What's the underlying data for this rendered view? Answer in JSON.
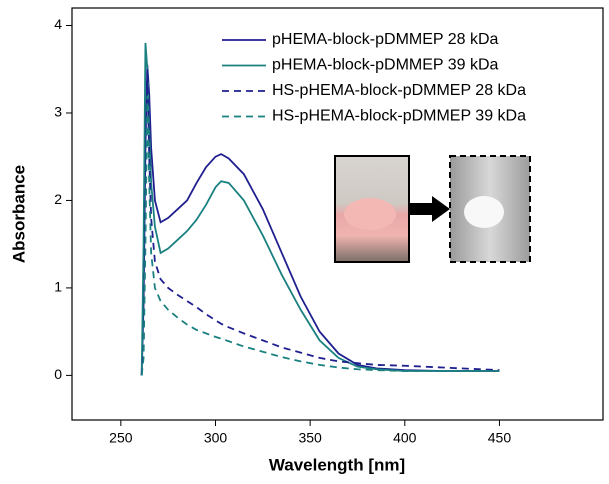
{
  "chart_data": {
    "type": "line",
    "x_label": "Wavelength [nm]",
    "y_label": "Absorbance",
    "x": [
      261,
      262,
      263,
      264,
      265,
      266,
      268,
      271,
      275,
      280,
      285,
      290,
      295,
      300,
      303,
      307,
      315,
      325,
      335,
      345,
      355,
      365,
      375,
      385,
      400,
      420,
      450
    ],
    "series": [
      {
        "name": "pHEMA-block-pDMMEP 28 kDa",
        "color": "#1f1f8f",
        "style": "solid",
        "values": [
          0,
          0.8,
          2.6,
          3.55,
          3.2,
          2.6,
          2.0,
          1.75,
          1.8,
          1.9,
          2.0,
          2.2,
          2.38,
          2.5,
          2.53,
          2.48,
          2.3,
          1.9,
          1.4,
          0.9,
          0.5,
          0.25,
          0.12,
          0.08,
          0.06,
          0.05,
          0.05
        ]
      },
      {
        "name": "pHEMA-block-pDMMEP 39 kDa",
        "color": "#1a8080",
        "style": "solid",
        "values": [
          0,
          1.5,
          3.8,
          3.5,
          2.8,
          2.2,
          1.7,
          1.4,
          1.45,
          1.55,
          1.65,
          1.78,
          1.95,
          2.15,
          2.22,
          2.2,
          2.0,
          1.6,
          1.15,
          0.75,
          0.4,
          0.2,
          0.1,
          0.07,
          0.05,
          0.05,
          0.05
        ]
      },
      {
        "name": "HS-pHEMA-block-pDMMEP 28 kDa",
        "color": "#1f1f8f",
        "style": "dashed",
        "values": [
          0,
          0.3,
          2.0,
          3.5,
          2.5,
          1.8,
          1.3,
          1.1,
          1.0,
          0.92,
          0.85,
          0.78,
          0.7,
          0.63,
          0.59,
          0.55,
          0.48,
          0.4,
          0.32,
          0.26,
          0.2,
          0.16,
          0.14,
          0.12,
          0.11,
          0.09,
          0.06
        ]
      },
      {
        "name": "HS-pHEMA-block-pDMMEP 39 kDa",
        "color": "#1a8080",
        "style": "dashed",
        "values": [
          0,
          0.2,
          1.5,
          3.2,
          2.2,
          1.4,
          1.0,
          0.85,
          0.75,
          0.66,
          0.58,
          0.52,
          0.48,
          0.44,
          0.42,
          0.39,
          0.33,
          0.27,
          0.21,
          0.16,
          0.12,
          0.09,
          0.07,
          0.06,
          0.05,
          0.05,
          0.05
        ]
      }
    ],
    "xlim": [
      224.2,
      504.7
    ],
    "ylim": [
      -0.51,
      4.2
    ],
    "xticks": [
      250,
      300,
      350,
      400,
      450
    ],
    "yticks": [
      0,
      1,
      2,
      3,
      4
    ],
    "grid": false,
    "legend": "upper right"
  }
}
